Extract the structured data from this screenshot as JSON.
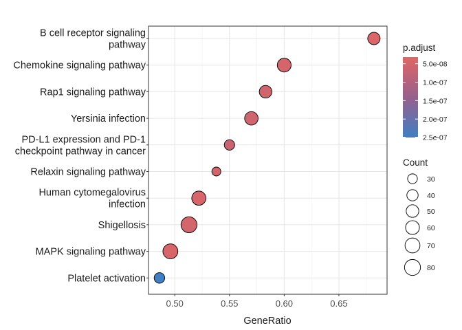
{
  "chart_data": {
    "type": "scatter",
    "xlabel": "GeneRatio",
    "xlim": [
      0.476,
      0.694
    ],
    "xticks": [
      "0.50",
      "0.55",
      "0.60",
      "0.65"
    ],
    "xtick_values": [
      0.5,
      0.55,
      0.6,
      0.65
    ],
    "grid": true,
    "categories": [
      {
        "lines": [
          "B cell receptor signaling",
          "pathway"
        ],
        "gene_ratio": 0.682,
        "count": 48,
        "p_adjust": 4e-08
      },
      {
        "lines": [
          "Chemokine signaling pathway"
        ],
        "gene_ratio": 0.6,
        "count": 60,
        "p_adjust": 5e-08
      },
      {
        "lines": [
          "Rap1 signaling pathway"
        ],
        "gene_ratio": 0.583,
        "count": 50,
        "p_adjust": 5.5e-08
      },
      {
        "lines": [
          "Yersinia infection"
        ],
        "gene_ratio": 0.57,
        "count": 57,
        "p_adjust": 5.8e-08
      },
      {
        "lines": [
          "PD-L1 expression and PD-1",
          "checkpoint pathway in cancer"
        ],
        "gene_ratio": 0.55,
        "count": 34,
        "p_adjust": 6.8e-08
      },
      {
        "lines": [
          "Relaxin signaling pathway"
        ],
        "gene_ratio": 0.538,
        "count": 25,
        "p_adjust": 5e-08
      },
      {
        "lines": [
          "Human cytomegalovirus",
          "infection"
        ],
        "gene_ratio": 0.522,
        "count": 63,
        "p_adjust": 4.5e-08
      },
      {
        "lines": [
          "Shigellosis"
        ],
        "gene_ratio": 0.513,
        "count": 80,
        "p_adjust": 5e-08
      },
      {
        "lines": [
          "MAPK signaling pathway"
        ],
        "gene_ratio": 0.496,
        "count": 70,
        "p_adjust": 4.5e-08
      },
      {
        "lines": [
          "Platelet activation"
        ],
        "gene_ratio": 0.486,
        "count": 35,
        "p_adjust": 2.5e-07
      }
    ],
    "legend": {
      "color": {
        "title": "p.adjust",
        "range": [
          3.2e-08,
          2.5e-07
        ],
        "ticks": [
          "5.0e-08",
          "1.0e-07",
          "1.5e-07",
          "2.0e-07",
          "2.5e-07"
        ],
        "tick_values": [
          5e-08,
          1e-07,
          1.5e-07,
          2e-07,
          2.5e-07
        ],
        "low_color": "#e06664",
        "high_color": "#3f7fc2"
      },
      "size": {
        "title": "Count",
        "labels": [
          "30",
          "40",
          "50",
          "60",
          "70",
          "80"
        ],
        "values": [
          30,
          40,
          50,
          60,
          70,
          80
        ]
      }
    }
  }
}
